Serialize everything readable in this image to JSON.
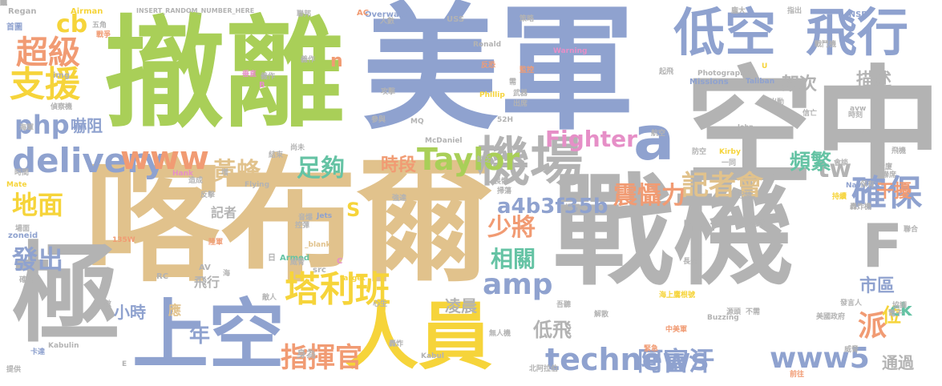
{
  "palette": {
    "blue": "#8fa2cf",
    "green": "#a9cf58",
    "gray": "#b3b3b3",
    "tan": "#e1c28c",
    "yellow": "#f6d43a",
    "orange": "#f19b73",
    "pink": "#e68fc7",
    "teal": "#65c3a4"
  },
  "words": [
    {
      "text": "撤離",
      "color": "#a9cf58",
      "size": 150
    },
    {
      "text": "美軍",
      "color": "#8fa2cf",
      "size": 170
    },
    {
      "text": "空中",
      "color": "#b3b3b3",
      "size": 160
    },
    {
      "text": "喀布爾",
      "color": "#e1c28c",
      "size": 170
    },
    {
      "text": "戰機",
      "color": "#b3b3b3",
      "size": 150
    },
    {
      "text": "極",
      "color": "#b3b3b3",
      "size": 135
    },
    {
      "text": "上空",
      "color": "#8fa2cf",
      "size": 95
    },
    {
      "text": "人員",
      "color": "#f6d43a",
      "size": 92
    },
    {
      "text": "低空",
      "color": "#8fa2cf",
      "size": 64
    },
    {
      "text": "飛行",
      "color": "#8fa2cf",
      "size": 64
    },
    {
      "text": "機場",
      "color": "#b3b3b3",
      "size": 66
    },
    {
      "text": "a",
      "color": "#8fa2cf",
      "size": 76
    },
    {
      "text": "F",
      "color": "#b3b3b3",
      "size": 75
    },
    {
      "text": "確保",
      "color": "#8fa2cf",
      "size": 44
    },
    {
      "text": "delivery",
      "color": "#8fa2cf",
      "size": 42
    },
    {
      "text": "www",
      "color": "#f19b73",
      "size": 40
    },
    {
      "text": "Taylor",
      "color": "#a9cf58",
      "size": 38
    },
    {
      "text": "塔利班",
      "color": "#f6d43a",
      "size": 44
    },
    {
      "text": "technews",
      "color": "#8fa2cf",
      "size": 38
    },
    {
      "text": "www5",
      "color": "#8fa2cf",
      "size": 36
    },
    {
      "text": "阿富汗",
      "color": "#8fa2cf",
      "size": 32
    },
    {
      "text": "指揮官",
      "color": "#f19b73",
      "size": 34
    },
    {
      "text": "amp",
      "color": "#8fa2cf",
      "size": 36
    },
    {
      "text": "php",
      "color": "#8fa2cf",
      "size": 32
    },
    {
      "text": "支援",
      "color": "#f6d43a",
      "size": 44
    },
    {
      "text": "超級",
      "color": "#f19b73",
      "size": 40
    },
    {
      "text": "cb",
      "color": "#f6d43a",
      "size": 30
    },
    {
      "text": "地面",
      "color": "#f6d43a",
      "size": 32
    },
    {
      "text": "發出",
      "color": "#8fa2cf",
      "size": 32
    },
    {
      "text": "黃蜂",
      "color": "#e1c28c",
      "size": 30
    },
    {
      "text": "足夠",
      "color": "#65c3a4",
      "size": 30
    },
    {
      "text": "Fighter",
      "color": "#e68fc7",
      "size": 28
    },
    {
      "text": "記者會",
      "color": "#e1c28c",
      "size": 34
    },
    {
      "text": "震懾力",
      "color": "#f19b73",
      "size": 30
    },
    {
      "text": "a4b3f35b",
      "color": "#8fa2cf",
      "size": 26
    },
    {
      "text": "少將",
      "color": "#f19b73",
      "size": 30
    },
    {
      "text": "相關",
      "color": "#65c3a4",
      "size": 28
    },
    {
      "text": "tw",
      "color": "#b3b3b3",
      "size": 30
    },
    {
      "text": "頻繁",
      "color": "#65c3a4",
      "size": 26
    },
    {
      "text": "架次",
      "color": "#b3b3b3",
      "size": 22
    },
    {
      "text": "描述",
      "color": "#b3b3b3",
      "size": 22
    },
    {
      "text": "干擾",
      "color": "#f19b73",
      "size": 22
    },
    {
      "text": "派",
      "color": "#f19b73",
      "size": 36
    },
    {
      "text": "時段",
      "color": "#f19b73",
      "size": 22
    },
    {
      "text": "低飛",
      "color": "#b3b3b3",
      "size": 24
    },
    {
      "text": "凌晨",
      "color": "#b3b3b3",
      "size": 20
    },
    {
      "text": "小時",
      "color": "#8fa2cf",
      "size": 20
    },
    {
      "text": "年",
      "color": "#8fa2cf",
      "size": 26
    },
    {
      "text": "市區",
      "color": "#8fa2cf",
      "size": 22
    },
    {
      "text": "位",
      "color": "#f6d43a",
      "size": 24
    },
    {
      "text": "ck",
      "color": "#65c3a4",
      "size": 22
    },
    {
      "text": "通過",
      "color": "#b3b3b3",
      "size": 20
    },
    {
      "text": "href",
      "color": "#b3b3b3",
      "size": 18
    },
    {
      "text": "嚇阻",
      "color": "#8fa2cf",
      "size": 20
    },
    {
      "text": "S",
      "color": "#f6d43a",
      "size": 24
    },
    {
      "text": "n",
      "color": "#f19b73",
      "size": 22
    },
    {
      "text": "記者",
      "color": "#b3b3b3",
      "size": 16
    },
    {
      "text": "飛行",
      "color": "#b3b3b3",
      "size": 16
    },
    {
      "text": "應",
      "color": "#e1c28c",
      "size": 16
    },
    {
      "text": "身為",
      "color": "#b3b3b3",
      "size": 12
    },
    {
      "text": "Regan",
      "color": "#b3b3b3",
      "size": 10
    },
    {
      "text": "Airman",
      "color": "#f6d43a",
      "size": 10
    },
    {
      "text": "INSERT_RANDOM_NUMBER_HERE",
      "color": "#b3b3b3",
      "size": 8
    },
    {
      "text": "Overwatch",
      "color": "#8fa2cf",
      "size": 10
    },
    {
      "text": "AC",
      "color": "#f19b73",
      "size": 10
    },
    {
      "text": "USS",
      "color": "#b3b3b3",
      "size": 10
    },
    {
      "text": "Ronald",
      "color": "#b3b3b3",
      "size": 9
    },
    {
      "text": "Warning",
      "color": "#e68fc7",
      "size": 9
    },
    {
      "text": "Photographer",
      "color": "#b3b3b3",
      "size": 9
    },
    {
      "text": "Missions",
      "color": "#8fa2cf",
      "size": 10
    },
    {
      "text": "Taliban",
      "color": "#8fa2cf",
      "size": 9
    },
    {
      "text": "INSE",
      "color": "#8fa2cf",
      "size": 10
    },
    {
      "text": "MQ",
      "color": "#b3b3b3",
      "size": 9
    },
    {
      "text": "52H",
      "color": "#b3b3b3",
      "size": 9
    },
    {
      "text": "McDaniel",
      "color": "#b3b3b3",
      "size": 9
    },
    {
      "text": "Phillip",
      "color": "#f6d43a",
      "size": 9
    },
    {
      "text": "John",
      "color": "#b3b3b3",
      "size": 8
    },
    {
      "text": "Kirby",
      "color": "#f6d43a",
      "size": 9
    },
    {
      "text": "Navy",
      "color": "#8fa2cf",
      "size": 9
    },
    {
      "text": "Hank",
      "color": "#e68fc7",
      "size": 9
    },
    {
      "text": "Flying",
      "color": "#b3b3b3",
      "size": 9
    },
    {
      "text": "Mate",
      "color": "#f6d43a",
      "size": 9
    },
    {
      "text": "zoneid",
      "color": "#8fa2cf",
      "size": 10
    },
    {
      "text": "135W",
      "color": "#f19b73",
      "size": 9
    },
    {
      "text": "Jets",
      "color": "#8fa2cf",
      "size": 9
    },
    {
      "text": "_blank",
      "color": "#e1c28c",
      "size": 9
    },
    {
      "text": "Armed",
      "color": "#65c3a4",
      "size": 10
    },
    {
      "text": "src",
      "color": "#b3b3b3",
      "size": 10
    },
    {
      "text": "target",
      "color": "#f6d43a",
      "size": 9
    },
    {
      "text": "AV",
      "color": "#b3b3b3",
      "size": 10
    },
    {
      "text": "RC",
      "color": "#b3b3b3",
      "size": 10
    },
    {
      "text": "Kabulin",
      "color": "#b3b3b3",
      "size": 9
    },
    {
      "text": "Kabul",
      "color": "#b3b3b3",
      "size": 9
    },
    {
      "text": "Buzzing",
      "color": "#b3b3b3",
      "size": 9
    },
    {
      "text": "img",
      "color": "#b3b3b3",
      "size": 10
    },
    {
      "text": "avw",
      "color": "#b3b3b3",
      "size": 9
    },
    {
      "text": "av",
      "color": "#b3b3b3",
      "size": 9
    },
    {
      "text": "B",
      "color": "#e68fc7",
      "size": 10
    },
    {
      "text": "C",
      "color": "#e68fc7",
      "size": 10
    },
    {
      "text": "E",
      "color": "#b3b3b3",
      "size": 9
    },
    {
      "text": "U",
      "color": "#f6d43a",
      "size": 9
    },
    {
      "text": "日",
      "color": "#b3b3b3",
      "size": 10
    },
    {
      "text": "首圖",
      "color": "#8fa2cf",
      "size": 10
    },
    {
      "text": "五角",
      "color": "#b3b3b3",
      "size": 9
    },
    {
      "text": "戰爭",
      "color": "#f19b73",
      "size": 9
    },
    {
      "text": "偵察機",
      "color": "#b3b3b3",
      "size": 9
    },
    {
      "text": "海軍",
      "color": "#b3b3b3",
      "size": 9
    },
    {
      "text": "時間",
      "color": "#b3b3b3",
      "size": 9
    },
    {
      "text": "場面",
      "color": "#b3b3b3",
      "size": 9
    },
    {
      "text": "確切",
      "color": "#b3b3b3",
      "size": 9
    },
    {
      "text": "卡達",
      "color": "#8fa2cf",
      "size": 9
    },
    {
      "text": "提供",
      "color": "#b3b3b3",
      "size": 9
    },
    {
      "text": "數",
      "color": "#b3b3b3",
      "size": 9
    },
    {
      "text": "聯邦",
      "color": "#b3b3b3",
      "size": 9
    },
    {
      "text": "策略",
      "color": "#b3b3b3",
      "size": 9
    },
    {
      "text": "轟炸",
      "color": "#b3b3b3",
      "size": 9
    },
    {
      "text": "監控",
      "color": "#f19b73",
      "size": 9
    },
    {
      "text": "反恐",
      "color": "#f19b73",
      "size": 9
    },
    {
      "text": "攻擊",
      "color": "#b3b3b3",
      "size": 9
    },
    {
      "text": "需",
      "color": "#b3b3b3",
      "size": 9
    },
    {
      "text": "武器",
      "color": "#b3b3b3",
      "size": 9
    },
    {
      "text": "出席",
      "color": "#b3b3b3",
      "size": 9
    },
    {
      "text": "龐大",
      "color": "#b3b3b3",
      "size": 9
    },
    {
      "text": "指出",
      "color": "#b3b3b3",
      "size": 9
    },
    {
      "text": "戰鬥機",
      "color": "#b3b3b3",
      "size": 9
    },
    {
      "text": "起飛",
      "color": "#b3b3b3",
      "size": 9
    },
    {
      "text": "出動",
      "color": "#b3b3b3",
      "size": 9
    },
    {
      "text": "信亡",
      "color": "#b3b3b3",
      "size": 9
    },
    {
      "text": "時刻",
      "color": "#b3b3b3",
      "size": 9
    },
    {
      "text": "航空",
      "color": "#b3b3b3",
      "size": 9
    },
    {
      "text": "防空",
      "color": "#b3b3b3",
      "size": 9
    },
    {
      "text": "一同",
      "color": "#b3b3b3",
      "size": 9
    },
    {
      "text": "會談",
      "color": "#b3b3b3",
      "size": 9
    },
    {
      "text": "飛機",
      "color": "#b3b3b3",
      "size": 9
    },
    {
      "text": "大廈",
      "color": "#b3b3b3",
      "size": 9
    },
    {
      "text": "聯席",
      "color": "#b3b3b3",
      "size": 9
    },
    {
      "text": "保有",
      "color": "#b3b3b3",
      "size": 9
    },
    {
      "text": "轟炸機",
      "color": "#b3b3b3",
      "size": 9
    },
    {
      "text": "起降",
      "color": "#b3b3b3",
      "size": 9
    },
    {
      "text": "持續",
      "color": "#f6d43a",
      "size": 9
    },
    {
      "text": "長達",
      "color": "#b3b3b3",
      "size": 9
    },
    {
      "text": "海上鷹根號",
      "color": "#f6d43a",
      "size": 9
    },
    {
      "text": "發言人",
      "color": "#b3b3b3",
      "size": 9
    },
    {
      "text": "協調",
      "color": "#b3b3b3",
      "size": 9
    },
    {
      "text": "電子",
      "color": "#b3b3b3",
      "size": 9
    },
    {
      "text": "美國政府",
      "color": "#b3b3b3",
      "size": 9
    },
    {
      "text": "源頭",
      "color": "#b3b3b3",
      "size": 9
    },
    {
      "text": "不需",
      "color": "#b3b3b3",
      "size": 9
    },
    {
      "text": "威脅",
      "color": "#b3b3b3",
      "size": 9
    },
    {
      "text": "前往",
      "color": "#f19b73",
      "size": 9
    },
    {
      "text": "緊急",
      "color": "#f19b73",
      "size": 9
    },
    {
      "text": "北阿拉伯",
      "color": "#b3b3b3",
      "size": 9
    },
    {
      "text": "無人機",
      "color": "#b3b3b3",
      "size": 9
    },
    {
      "text": "中美軍",
      "color": "#f19b73",
      "size": 9
    },
    {
      "text": "解散",
      "color": "#b3b3b3",
      "size": 9
    },
    {
      "text": "吾聽",
      "color": "#b3b3b3",
      "size": 9
    },
    {
      "text": "威脅",
      "color": "#b3b3b3",
      "size": 9
    },
    {
      "text": "畏懼",
      "color": "#b3b3b3",
      "size": 9
    },
    {
      "text": "掃蕩",
      "color": "#b3b3b3",
      "size": 9
    },
    {
      "text": "抑下",
      "color": "#b3b3b3",
      "size": 9
    },
    {
      "text": "強達",
      "color": "#b3b3b3",
      "size": 9
    },
    {
      "text": "心生",
      "color": "#b3b3b3",
      "size": 9
    },
    {
      "text": "敵人",
      "color": "#b3b3b3",
      "size": 9
    },
    {
      "text": "海",
      "color": "#b3b3b3",
      "size": 9
    },
    {
      "text": "陸軍",
      "color": "#f19b73",
      "size": 9
    },
    {
      "text": "音爆",
      "color": "#b3b3b3",
      "size": 9
    },
    {
      "text": "控彈",
      "color": "#b3b3b3",
      "size": 9
    },
    {
      "text": "結束",
      "color": "#b3b3b3",
      "size": 9
    },
    {
      "text": "反擊",
      "color": "#b3b3b3",
      "size": 9
    },
    {
      "text": "造成",
      "color": "#b3b3b3",
      "size": 9
    },
    {
      "text": "尚未",
      "color": "#b3b3b3",
      "size": 9
    },
    {
      "text": "人數",
      "color": "#b3b3b3",
      "size": 9
    },
    {
      "text": "參與",
      "color": "#b3b3b3",
      "size": 9
    },
    {
      "text": "缺乏",
      "color": "#b3b3b3",
      "size": 9
    },
    {
      "text": "增",
      "color": "#b3b3b3",
      "size": 9
    },
    {
      "text": "義作",
      "color": "#b3b3b3",
      "size": 9
    },
    {
      "text": "義作",
      "color": "#b3b3b3",
      "size": 9
    },
    {
      "text": "垂直",
      "color": "#e68fc7",
      "size": 9
    },
    {
      "text": "邀請",
      "color": "#b3b3b3",
      "size": 9
    },
    {
      "text": "聯合",
      "color": "#b3b3b3",
      "size": 9
    },
    {
      "text": "週",
      "color": "#b3b3b3",
      "size": 9
    },
    {
      "text": "整",
      "color": "#b3b3b3",
      "size": 9
    },
    {
      "text": "說",
      "color": "#b3b3b3",
      "size": 9
    },
    {
      "text": "吳",
      "color": "#b3b3b3",
      "size": 9
    },
    {
      "text": "埋",
      "color": "#b3b3b3",
      "size": 9
    },
    {
      "text": "架",
      "color": "#b3b3b3",
      "size": 9
    }
  ]
}
